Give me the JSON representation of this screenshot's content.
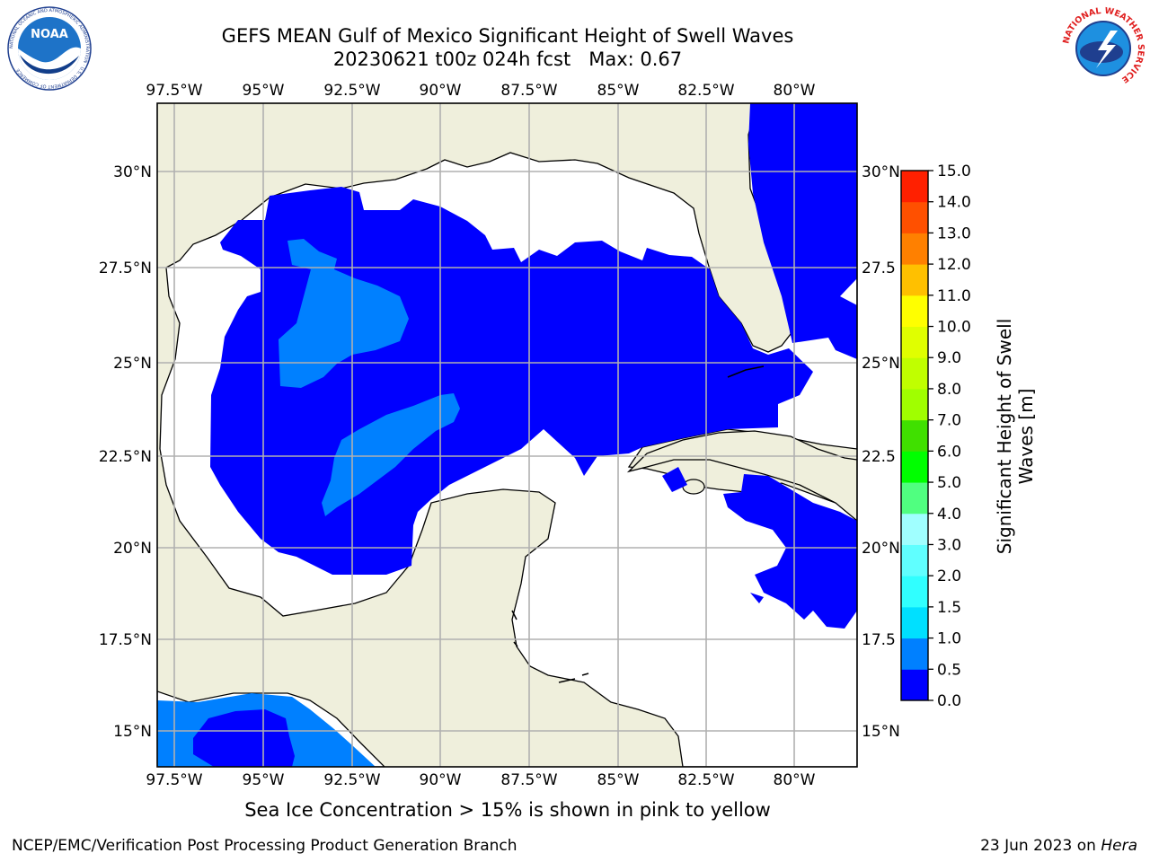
{
  "title": {
    "line1": "GEFS MEAN Gulf of Mexico Significant Height of Swell Waves",
    "line2": "20230621 t00z 024h fcst   Max: 0.67"
  },
  "logos": {
    "noaa": {
      "text": "NOAA",
      "ring": "NATIONAL OCEANIC AND ATMOSPHERIC ADMINISTRATION · U.S. DEPARTMENT OF COMMERCE"
    },
    "nws": {
      "ring": "NATIONAL WEATHER SERVICE"
    }
  },
  "map": {
    "lon_labels": [
      "97.5°W",
      "95°W",
      "92.5°W",
      "90°W",
      "87.5°W",
      "85°W",
      "82.5°W",
      "80°W"
    ],
    "lat_labels_left": [
      "30°N",
      "27.5°N",
      "25°N",
      "22.5°N",
      "20°N",
      "17.5°N",
      "15°N"
    ],
    "lat_labels_right": [
      "30°N",
      "27.5",
      "25°N",
      "22.5",
      "20°N",
      "17.5",
      "15°N"
    ],
    "colors": {
      "land": "#efefdc",
      "ocean_no_data": "#ffffff",
      "grid": "#b0b0b0"
    }
  },
  "colorbar": {
    "ticks": [
      "0.0",
      "0.5",
      "1.0",
      "1.5",
      "2.0",
      "3.0",
      "4.0",
      "5.0",
      "6.0",
      "7.0",
      "8.0",
      "9.0",
      "10.0",
      "11.0",
      "12.0",
      "13.0",
      "14.0",
      "15.0"
    ],
    "colors": [
      "#0000ff",
      "#0080ff",
      "#00e0ff",
      "#30ffff",
      "#60ffff",
      "#a0ffff",
      "#50ff80",
      "#00ff00",
      "#40e000",
      "#a0ff00",
      "#c0ff00",
      "#e0ff00",
      "#ffff00",
      "#ffc000",
      "#ff8000",
      "#ff5000",
      "#ff2000",
      "#ff0000"
    ],
    "label_line1": "Significant Height of Swell",
    "label_line2": "Waves [m]"
  },
  "footer": {
    "sea_ice_note": "Sea Ice Concentration > 15% is shown in pink to yellow",
    "credit": "NCEP/EMC/Verification Post Processing Product Generation Branch",
    "date": "23 Jun 2023 on",
    "machine": "Hera"
  }
}
